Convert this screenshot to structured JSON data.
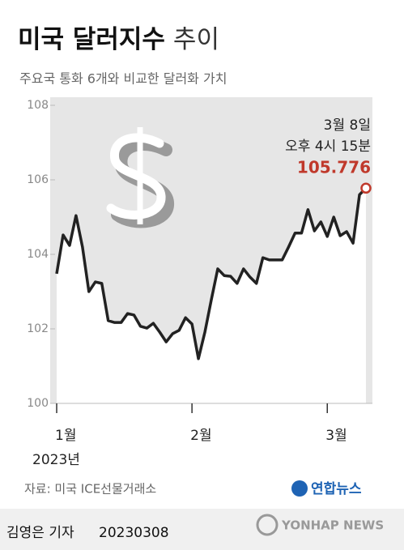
{
  "chart_data": {
    "type": "line",
    "title": "미국 달러지수",
    "title_suffix": "추이",
    "subtitle": "주요국 통화 6개와 비교한 달러화 가치",
    "categories": [
      "1월",
      null,
      null,
      null,
      null,
      null,
      null,
      null,
      null,
      null,
      null,
      null,
      null,
      null,
      null,
      null,
      null,
      null,
      null,
      null,
      null,
      "2월",
      null,
      null,
      null,
      null,
      null,
      null,
      null,
      null,
      null,
      null,
      null,
      null,
      null,
      null,
      null,
      null,
      null,
      null,
      null,
      null,
      "3월",
      null,
      null,
      null,
      null,
      null,
      null
    ],
    "year_label": "2023년",
    "values": [
      103.48,
      104.52,
      104.24,
      105.04,
      104.2,
      103.0,
      103.26,
      103.22,
      102.22,
      102.17,
      102.17,
      102.41,
      102.37,
      102.07,
      102.02,
      102.15,
      101.91,
      101.65,
      101.87,
      101.96,
      102.3,
      102.13,
      101.2,
      101.91,
      102.78,
      103.61,
      103.43,
      103.41,
      103.22,
      103.61,
      103.39,
      103.22,
      103.91,
      103.85,
      103.85,
      103.85,
      104.2,
      104.57,
      104.57,
      105.2,
      104.63,
      104.87,
      104.48,
      105.0,
      104.5,
      104.61,
      104.3,
      105.6,
      105.776
    ],
    "color": "#222222",
    "highlight_color": "#c0392b",
    "annotation": [
      "3월 8일",
      "오후 4시 15분"
    ],
    "ylim": [
      100,
      108
    ],
    "yticks": [
      100,
      102,
      104,
      106,
      108
    ],
    "grid": false
  },
  "footer": {
    "source": "자료: 미국 ICE선물거래소",
    "logo": "연합뉴스",
    "byline": "김영은 기자",
    "date": "20230308",
    "watermark": "YONHAP NEWS"
  }
}
